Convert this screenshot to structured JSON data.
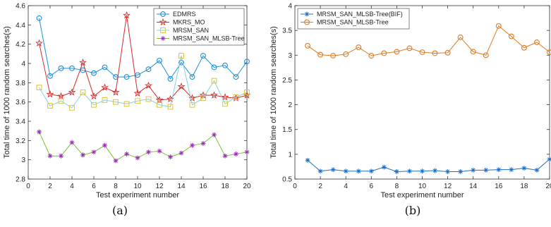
{
  "chart_data": [
    {
      "type": "line",
      "caption": "(a)",
      "xlabel": "Test experiment number",
      "ylabel": "Total time of 1000 random searches(s)",
      "xlim": [
        0,
        20
      ],
      "ylim": [
        2.8,
        4.6
      ],
      "x_ticks": [
        0,
        2,
        4,
        6,
        8,
        10,
        12,
        14,
        16,
        18,
        20
      ],
      "y_ticks": [
        2.8,
        3,
        3.2,
        3.4,
        3.6,
        3.8,
        4,
        4.2,
        4.4,
        4.6
      ],
      "x_tick_labels": [
        "0",
        "2",
        "4",
        "6",
        "8",
        "10",
        "12",
        "14",
        "16",
        "18",
        "20"
      ],
      "y_tick_labels": [
        "2.8",
        "3",
        "3.2",
        "3.4",
        "3.6",
        "3.8",
        "4",
        "4.2",
        "4.4",
        "4.6"
      ],
      "legend_position": "top-right",
      "grid": false,
      "x": [
        1,
        2,
        3,
        4,
        5,
        6,
        7,
        8,
        9,
        10,
        11,
        12,
        13,
        14,
        15,
        16,
        17,
        18,
        19,
        20
      ],
      "series": [
        {
          "name": "EDMRS",
          "color": "#1f8fd6",
          "marker": "circle",
          "values": [
            4.47,
            3.87,
            3.95,
            3.95,
            3.93,
            3.9,
            3.96,
            3.86,
            3.86,
            3.88,
            3.94,
            4.03,
            3.84,
            4.01,
            3.86,
            4.08,
            3.96,
            3.98,
            3.86,
            4.02
          ]
        },
        {
          "name": "MKRS_MO",
          "color": "#d42a2a",
          "marker": "star",
          "values": [
            4.21,
            3.68,
            3.66,
            3.7,
            4.01,
            3.66,
            3.75,
            3.7,
            4.5,
            3.69,
            3.77,
            3.62,
            3.63,
            3.76,
            3.64,
            3.67,
            3.67,
            3.65,
            3.64,
            3.67
          ]
        },
        {
          "name": "MRSM_SAN",
          "color": "#e2c236",
          "line_color": "#7fd3e0",
          "marker": "square",
          "values": [
            3.75,
            3.56,
            3.61,
            3.54,
            3.7,
            3.57,
            3.62,
            3.6,
            3.58,
            3.61,
            3.63,
            3.57,
            3.55,
            4.08,
            3.57,
            3.64,
            3.82,
            3.58,
            3.65,
            3.7
          ]
        },
        {
          "name": "MRSM_SAN_MLSB-Tree",
          "color": "#9b2fb8",
          "line_color": "#7fbf3a",
          "marker": "asterisk",
          "values": [
            3.29,
            3.04,
            3.04,
            3.18,
            3.05,
            3.08,
            3.15,
            2.99,
            3.06,
            3.02,
            3.08,
            3.09,
            3.03,
            3.07,
            3.15,
            3.17,
            3.26,
            3.04,
            3.06,
            3.08
          ]
        }
      ]
    },
    {
      "type": "line",
      "caption": "(b)",
      "xlabel": "Test experiment number",
      "ylabel": "Total time of 1000 random searches(s)",
      "xlim": [
        0,
        20
      ],
      "ylim": [
        0.5,
        4
      ],
      "x_ticks": [
        0,
        2,
        4,
        6,
        8,
        10,
        12,
        14,
        16,
        18,
        20
      ],
      "y_ticks": [
        0.5,
        1,
        1.5,
        2,
        2.5,
        3,
        3.5,
        4
      ],
      "x_tick_labels": [
        "0",
        "2",
        "4",
        "6",
        "8",
        "10",
        "12",
        "14",
        "16",
        "18",
        "20"
      ],
      "y_tick_labels": [
        "0.5",
        "1",
        "1.5",
        "2",
        "2.5",
        "3",
        "3.5",
        "4"
      ],
      "legend_position": "top-left",
      "grid": false,
      "x": [
        1,
        2,
        3,
        4,
        5,
        6,
        7,
        8,
        9,
        10,
        11,
        12,
        13,
        14,
        15,
        16,
        17,
        18,
        19,
        20
      ],
      "series": [
        {
          "name": "MRSM_SAN_MLSB-Tree(BIF)",
          "color": "#1f6fc0",
          "marker": "asterisk",
          "values": [
            0.88,
            0.66,
            0.69,
            0.66,
            0.66,
            0.66,
            0.74,
            0.65,
            0.66,
            0.66,
            0.67,
            0.65,
            0.65,
            0.68,
            0.68,
            0.69,
            0.69,
            0.72,
            0.68,
            0.9
          ]
        },
        {
          "name": "MRSM_SAN_MLSB-Tree",
          "color": "#e07b22",
          "marker": "circle",
          "values": [
            3.19,
            3.01,
            2.99,
            3.02,
            3.16,
            2.99,
            3.04,
            3.07,
            3.14,
            3.06,
            3.04,
            3.05,
            3.36,
            3.07,
            3.0,
            3.59,
            3.38,
            3.15,
            3.26,
            3.06
          ]
        }
      ]
    }
  ]
}
